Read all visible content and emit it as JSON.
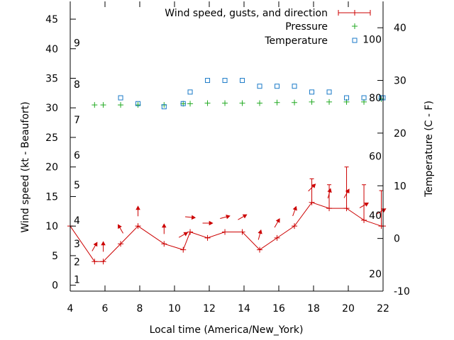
{
  "chart_data": {
    "type": "line",
    "xlabel": "Local time (America/New_York)",
    "ylabel": "Wind speed (kt - Beaufort)",
    "y2label": "Temperature (C - F)",
    "xlim": [
      4,
      22
    ],
    "ylim": [
      -1,
      48
    ],
    "y2lim": [
      -10,
      45
    ],
    "x_ticks": [
      4,
      6,
      8,
      10,
      12,
      14,
      16,
      18,
      20,
      22
    ],
    "y_ticks": [
      0,
      5,
      10,
      15,
      20,
      25,
      30,
      35,
      40,
      45
    ],
    "y2_ticks": [
      -10,
      0,
      10,
      20,
      30,
      40
    ],
    "beaufort_labels": [
      {
        "text": "1",
        "y": 1
      },
      {
        "text": "2",
        "y": 4
      },
      {
        "text": "3",
        "y": 7
      },
      {
        "text": "4",
        "y": 11
      },
      {
        "text": "5",
        "y": 17
      },
      {
        "text": "6",
        "y": 22
      },
      {
        "text": "7",
        "y": 28
      },
      {
        "text": "8",
        "y": 34
      },
      {
        "text": "9",
        "y": 41
      }
    ],
    "fahrenheit_labels": [
      {
        "text": "20",
        "y2": -6.7
      },
      {
        "text": "40",
        "y2": 4.4
      },
      {
        "text": "60",
        "y2": 15.6
      },
      {
        "text": "80",
        "y2": 26.7
      },
      {
        "text": "100",
        "y2": 37.8
      }
    ],
    "legend": {
      "placement": "top-right",
      "entries": [
        "Wind speed, gusts, and direction",
        "Pressure",
        "Temperature"
      ]
    },
    "colors": {
      "wind": "#cc0000",
      "pressure": "#22aa22",
      "temperature": "#1a7ac8"
    },
    "series": [
      {
        "name": "Wind speed, gusts, and direction",
        "x": [
          4,
          5.4,
          5.9,
          6.9,
          7.9,
          9.4,
          10.5,
          10.9,
          11.9,
          12.9,
          13.9,
          14.9,
          15.9,
          16.9,
          17.9,
          18.9,
          19.9,
          20.9,
          21.9,
          22
        ],
        "values": [
          10,
          4,
          4,
          7,
          10,
          7,
          6,
          9,
          8,
          9,
          9,
          6,
          8,
          10,
          14,
          13,
          13,
          11,
          10,
          10
        ],
        "gusts": [
          null,
          null,
          null,
          null,
          null,
          null,
          null,
          null,
          null,
          null,
          null,
          null,
          null,
          null,
          18,
          17,
          20,
          17,
          16,
          null
        ],
        "direction_deg": [
          null,
          30,
          0,
          330,
          0,
          0,
          60,
          95,
          90,
          75,
          60,
          15,
          30,
          20,
          45,
          15,
          30,
          60,
          60,
          null
        ]
      },
      {
        "name": "Pressure",
        "x": [
          5.4,
          5.9,
          6.9,
          7.9,
          9.4,
          10.5,
          10.9,
          11.9,
          12.9,
          13.9,
          14.9,
          15.9,
          16.9,
          17.9,
          18.9,
          19.9,
          20.9,
          21.9
        ],
        "values": [
          30.5,
          30.5,
          30.5,
          30.5,
          30.5,
          30.7,
          30.7,
          30.8,
          30.8,
          30.8,
          30.8,
          30.9,
          30.9,
          31,
          31,
          31,
          31,
          31.5
        ]
      },
      {
        "name": "Temperature",
        "x": [
          6.9,
          7.9,
          9.4,
          10.5,
          10.9,
          11.9,
          12.9,
          13.9,
          14.9,
          15.9,
          16.9,
          17.9,
          18.9,
          19.9,
          20.9,
          21.9,
          22
        ],
        "values2": [
          26.7,
          25.6,
          25,
          25.6,
          27.8,
          30,
          30,
          30,
          28.9,
          28.9,
          28.9,
          27.8,
          27.8,
          26.7,
          26.7,
          26.7,
          26.7
        ]
      }
    ]
  }
}
